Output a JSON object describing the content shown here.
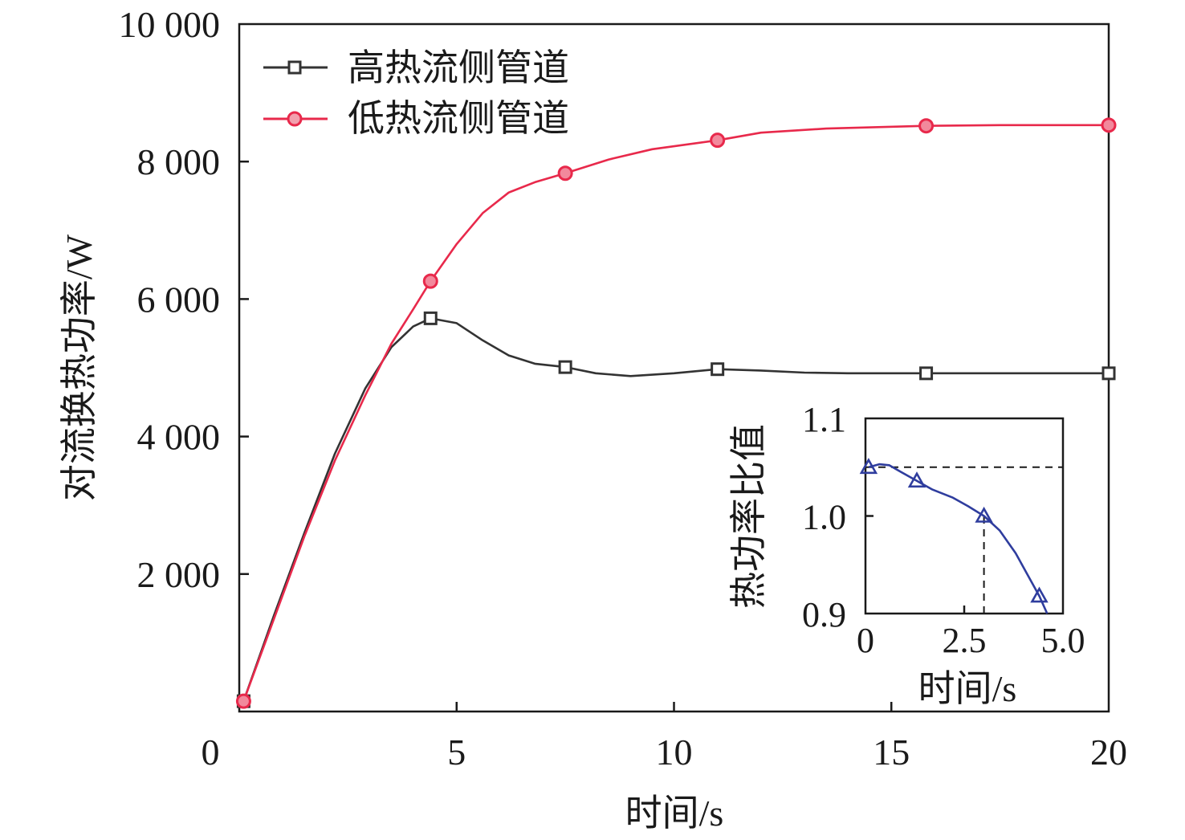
{
  "chart_data": [
    {
      "type": "line",
      "title": "",
      "xlabel": "时间/s",
      "ylabel": "对流换热功率/W",
      "xlim": [
        0,
        20
      ],
      "ylim": [
        0,
        10000
      ],
      "x_ticks": [
        "0",
        "5",
        "10",
        "15",
        "20"
      ],
      "y_ticks": [
        "2 000",
        "4 000",
        "6 000",
        "8 000",
        "10 000"
      ],
      "legend_position": "top-left",
      "grid": false,
      "series": [
        {
          "name": "高热流侧管道",
          "color": "#333333",
          "marker": "square",
          "markers": [
            [
              0.1,
              150
            ],
            [
              4.4,
              5720
            ],
            [
              7.5,
              5010
            ],
            [
              11,
              4980
            ],
            [
              15.8,
              4920
            ],
            [
              20,
              4920
            ]
          ],
          "curve": [
            [
              0.1,
              150
            ],
            [
              0.8,
              1400
            ],
            [
              1.5,
              2600
            ],
            [
              2.2,
              3750
            ],
            [
              2.9,
              4700
            ],
            [
              3.5,
              5300
            ],
            [
              4.0,
              5600
            ],
            [
              4.4,
              5720
            ],
            [
              5.0,
              5650
            ],
            [
              5.6,
              5400
            ],
            [
              6.2,
              5180
            ],
            [
              6.8,
              5060
            ],
            [
              7.5,
              5010
            ],
            [
              8.2,
              4920
            ],
            [
              9.0,
              4880
            ],
            [
              10.0,
              4920
            ],
            [
              11.0,
              4980
            ],
            [
              12.0,
              4960
            ],
            [
              13.0,
              4930
            ],
            [
              14.0,
              4920
            ],
            [
              15.8,
              4920
            ],
            [
              17.5,
              4920
            ],
            [
              20.0,
              4920
            ]
          ]
        },
        {
          "name": "低热流侧管道",
          "color": "#e8294b",
          "marker": "circle",
          "markers": [
            [
              0.1,
              150
            ],
            [
              4.4,
              6260
            ],
            [
              7.5,
              7830
            ],
            [
              11,
              8310
            ],
            [
              15.8,
              8520
            ],
            [
              20,
              8530
            ]
          ],
          "curve": [
            [
              0.1,
              150
            ],
            [
              0.8,
              1350
            ],
            [
              1.5,
              2550
            ],
            [
              2.2,
              3650
            ],
            [
              2.9,
              4600
            ],
            [
              3.5,
              5350
            ],
            [
              4.0,
              5850
            ],
            [
              4.4,
              6260
            ],
            [
              5.0,
              6800
            ],
            [
              5.6,
              7250
            ],
            [
              6.2,
              7550
            ],
            [
              6.8,
              7700
            ],
            [
              7.5,
              7830
            ],
            [
              8.5,
              8030
            ],
            [
              9.5,
              8180
            ],
            [
              11.0,
              8310
            ],
            [
              12.0,
              8420
            ],
            [
              13.5,
              8480
            ],
            [
              15.8,
              8520
            ],
            [
              17.5,
              8530
            ],
            [
              20.0,
              8530
            ]
          ]
        }
      ]
    },
    {
      "type": "line",
      "title": "",
      "xlabel": "时间/s",
      "ylabel": "热功率比值",
      "xlim": [
        0,
        5
      ],
      "ylim": [
        0.9,
        1.1
      ],
      "x_ticks": [
        "0",
        "2.5",
        "5.0"
      ],
      "y_ticks": [
        "0.9",
        "1.0",
        "1.1"
      ],
      "grid": false,
      "reference_lines": [
        {
          "orientation": "horizontal",
          "y": 1.05,
          "x_from": 0,
          "x_to": 5
        },
        {
          "orientation": "vertical",
          "x": 3.0,
          "y_from": 0.9,
          "y_to": 1.0
        }
      ],
      "series": [
        {
          "color": "#2f3d9e",
          "marker": "triangle",
          "markers": [
            [
              0.08,
              1.05
            ],
            [
              1.3,
              1.036
            ],
            [
              3.0,
              1.0
            ],
            [
              4.4,
              0.918
            ]
          ],
          "curve": [
            [
              0.08,
              1.05
            ],
            [
              0.35,
              1.053
            ],
            [
              0.6,
              1.052
            ],
            [
              0.9,
              1.045
            ],
            [
              1.3,
              1.036
            ],
            [
              1.7,
              1.027
            ],
            [
              2.2,
              1.019
            ],
            [
              2.6,
              1.01
            ],
            [
              3.0,
              1.0
            ],
            [
              3.4,
              0.985
            ],
            [
              3.8,
              0.962
            ],
            [
              4.1,
              0.94
            ],
            [
              4.4,
              0.918
            ],
            [
              4.6,
              0.9
            ]
          ]
        }
      ]
    }
  ]
}
